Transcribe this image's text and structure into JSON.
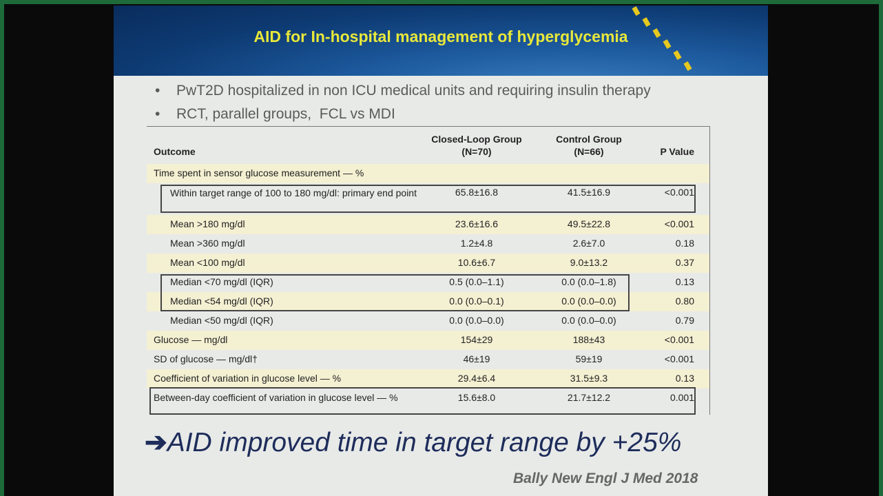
{
  "header": {
    "title": "AID for In-hospital management of hyperglycemia"
  },
  "bullets": [
    "PwT2D hospitalized in non ICU medical units and requiring insulin therapy",
    "RCT, parallel groups,  FCL vs MDI"
  ],
  "table": {
    "columns": [
      [
        "Outcome"
      ],
      [
        "Closed-Loop Group",
        "(N=70)"
      ],
      [
        "Control Group",
        "(N=66)"
      ],
      [
        "P Value"
      ]
    ],
    "rows": [
      [
        "Time spent in sensor glucose measurement — %"
      ],
      [
        "Within target range of 100 to 180 mg/dl: primary end point",
        "65.8±16.8",
        "41.5±16.9",
        "<0.001"
      ],
      [
        "Mean >180 mg/dl",
        "23.6±16.6",
        "49.5±22.8",
        "<0.001"
      ],
      [
        "Mean >360 mg/dl",
        "1.2±4.8",
        "2.6±7.0",
        "0.18"
      ],
      [
        "Mean <100 mg/dl",
        "10.6±6.7",
        "9.0±13.2",
        "0.37"
      ],
      [
        "Median <70 mg/dl (IQR)",
        "0.5 (0.0–1.1)",
        "0.0 (0.0–1.8)",
        "0.13"
      ],
      [
        "Median <54 mg/dl (IQR)",
        "0.0 (0.0–0.1)",
        "0.0 (0.0–0.0)",
        "0.80"
      ],
      [
        "Median <50 mg/dl (IQR)",
        "0.0 (0.0–0.0)",
        "0.0 (0.0–0.0)",
        "0.79"
      ],
      [
        "Glucose — mg/dl",
        "154±29",
        "188±43",
        "<0.001"
      ],
      [
        "SD of glucose — mg/dl†",
        "46±19",
        "59±19",
        "<0.001"
      ],
      [
        "Coefficient of variation in glucose level — %",
        "29.4±6.4",
        "31.5±9.3",
        "0.13"
      ],
      [
        "Between-day coefficient of variation in glucose level — %",
        "15.6±8.0",
        "21.7±12.2",
        "0.001"
      ]
    ]
  },
  "conclusion": "AID improved time in target range by +25%",
  "citation": "Bally New Engl J Med 2018"
}
